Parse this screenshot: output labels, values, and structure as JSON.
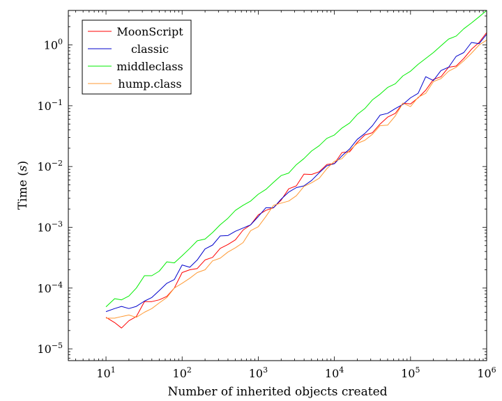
{
  "chart_data": {
    "type": "line",
    "title": "",
    "xlabel": "Number of inherited objects created",
    "ylabel": "Time (s)",
    "ylabel_text": "Time (",
    "ylabel_unit": "s",
    "ylabel_close": ")",
    "xscale": "log",
    "yscale": "log",
    "xlim": [
      3.2,
      1000000
    ],
    "ylim": [
      6.4e-06,
      3.7
    ],
    "grid": false,
    "legend_position": "top-left",
    "x_ticks": [
      {
        "value": 10,
        "base": "10",
        "exp": "1"
      },
      {
        "value": 100,
        "base": "10",
        "exp": "2"
      },
      {
        "value": 1000,
        "base": "10",
        "exp": "3"
      },
      {
        "value": 10000,
        "base": "10",
        "exp": "4"
      },
      {
        "value": 100000,
        "base": "10",
        "exp": "5"
      },
      {
        "value": 1000000,
        "base": "10",
        "exp": "6"
      }
    ],
    "y_ticks": [
      {
        "value": 1e-05,
        "base": "10",
        "exp": "−5"
      },
      {
        "value": 0.0001,
        "base": "10",
        "exp": "−4"
      },
      {
        "value": 0.001,
        "base": "10",
        "exp": "−3"
      },
      {
        "value": 0.01,
        "base": "10",
        "exp": "−2"
      },
      {
        "value": 0.1,
        "base": "10",
        "exp": "−1"
      },
      {
        "value": 1,
        "base": "10",
        "exp": "0"
      }
    ],
    "x": [
      10,
      13,
      16,
      20,
      25,
      32,
      40,
      50,
      63,
      79,
      100,
      126,
      158,
      200,
      251,
      316,
      398,
      501,
      631,
      794,
      1000,
      1259,
      1585,
      1995,
      2512,
      3162,
      3981,
      5012,
      6310,
      7943,
      10000,
      12589,
      15849,
      19953,
      25119,
      31623,
      39811,
      50119,
      63096,
      79433,
      100000,
      125893,
      158489,
      199526,
      251189,
      316228,
      398107,
      501187,
      630957,
      794328,
      1000000
    ],
    "series": [
      {
        "name": "MoonScript",
        "color": "#ff0000",
        "values": [
          3.3e-05,
          2.7e-05,
          2.2e-05,
          2.9e-05,
          3.4e-05,
          6e-05,
          6e-05,
          6.4e-05,
          7.3e-05,
          0.0001,
          0.00018,
          0.0002,
          0.00021,
          0.00029,
          0.00032,
          0.00045,
          0.00052,
          0.00062,
          0.0009,
          0.0011,
          0.0016,
          0.0019,
          0.0021,
          0.0028,
          0.0043,
          0.0048,
          0.0075,
          0.0074,
          0.0082,
          0.0108,
          0.0112,
          0.017,
          0.0175,
          0.025,
          0.033,
          0.036,
          0.05,
          0.065,
          0.075,
          0.11,
          0.107,
          0.135,
          0.18,
          0.27,
          0.3,
          0.43,
          0.45,
          0.6,
          0.85,
          1.1,
          1.6
        ]
      },
      {
        "name": "classic",
        "color": "#0000cc",
        "values": [
          4.1e-05,
          4.6e-05,
          5e-05,
          4.6e-05,
          5e-05,
          6.1e-05,
          7e-05,
          9.1e-05,
          0.00012,
          0.000138,
          0.00024,
          0.00022,
          0.00029,
          0.00044,
          0.00051,
          0.00072,
          0.00073,
          0.00086,
          0.00097,
          0.0011,
          0.0015,
          0.0021,
          0.0021,
          0.0029,
          0.0038,
          0.0045,
          0.0048,
          0.0059,
          0.0079,
          0.0103,
          0.0111,
          0.015,
          0.0195,
          0.028,
          0.035,
          0.047,
          0.07,
          0.075,
          0.09,
          0.105,
          0.135,
          0.16,
          0.3,
          0.26,
          0.38,
          0.43,
          0.65,
          0.75,
          1.1,
          1.05,
          1.5
        ]
      },
      {
        "name": "middleclass",
        "color": "#00ee00",
        "values": [
          4.9e-05,
          6.7e-05,
          6.4e-05,
          7.4e-05,
          0.0001,
          0.00016,
          0.00016,
          0.00019,
          0.00027,
          0.00026,
          0.00034,
          0.00045,
          0.0006,
          0.00064,
          0.00082,
          0.0011,
          0.0014,
          0.0019,
          0.0023,
          0.0027,
          0.0035,
          0.0042,
          0.0055,
          0.0071,
          0.0078,
          0.0107,
          0.0135,
          0.018,
          0.022,
          0.029,
          0.033,
          0.043,
          0.052,
          0.072,
          0.09,
          0.125,
          0.155,
          0.2,
          0.23,
          0.31,
          0.37,
          0.48,
          0.6,
          0.75,
          0.97,
          1.25,
          1.4,
          1.85,
          2.3,
          2.9,
          3.7
        ]
      },
      {
        "name": "hump.class",
        "color": "#ff9933",
        "values": [
          3.2e-05,
          3.2e-05,
          3.4e-05,
          3.6e-05,
          3.3e-05,
          4e-05,
          4.6e-05,
          5.7e-05,
          7e-05,
          0.0001,
          0.00012,
          0.000145,
          0.00018,
          0.0002,
          0.00028,
          0.00031,
          0.00039,
          0.00046,
          0.00056,
          0.00088,
          0.00102,
          0.0015,
          0.0023,
          0.0025,
          0.0027,
          0.0033,
          0.0047,
          0.0054,
          0.0064,
          0.0092,
          0.0122,
          0.0135,
          0.0185,
          0.024,
          0.027,
          0.034,
          0.047,
          0.048,
          0.068,
          0.11,
          0.097,
          0.138,
          0.16,
          0.25,
          0.28,
          0.37,
          0.43,
          0.55,
          0.73,
          1.0,
          1.2
        ]
      }
    ]
  }
}
